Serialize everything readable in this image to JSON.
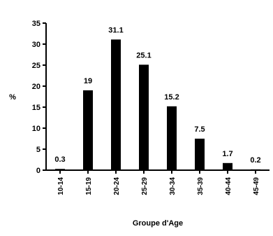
{
  "chart_data": {
    "type": "bar",
    "title": "",
    "xlabel": "Groupe d'Age",
    "ylabel": "%",
    "ylim": [
      0,
      35
    ],
    "yticks": [
      "0",
      "5",
      "10",
      "15",
      "20",
      "25",
      "30",
      "35"
    ],
    "categories": [
      "10-14",
      "15-19",
      "20-24",
      "25-29",
      "30-34",
      "35-39",
      "40-44",
      "45-49"
    ],
    "values": [
      0.3,
      19,
      31.1,
      25.1,
      15.2,
      7.5,
      1.7,
      0.2
    ],
    "data_labels": [
      "0.3",
      "19",
      "31.1",
      "25.1",
      "15.2",
      "7.5",
      "1.7",
      "0.2"
    ],
    "bar_color": "#000000",
    "grid": false,
    "legend": "none"
  }
}
